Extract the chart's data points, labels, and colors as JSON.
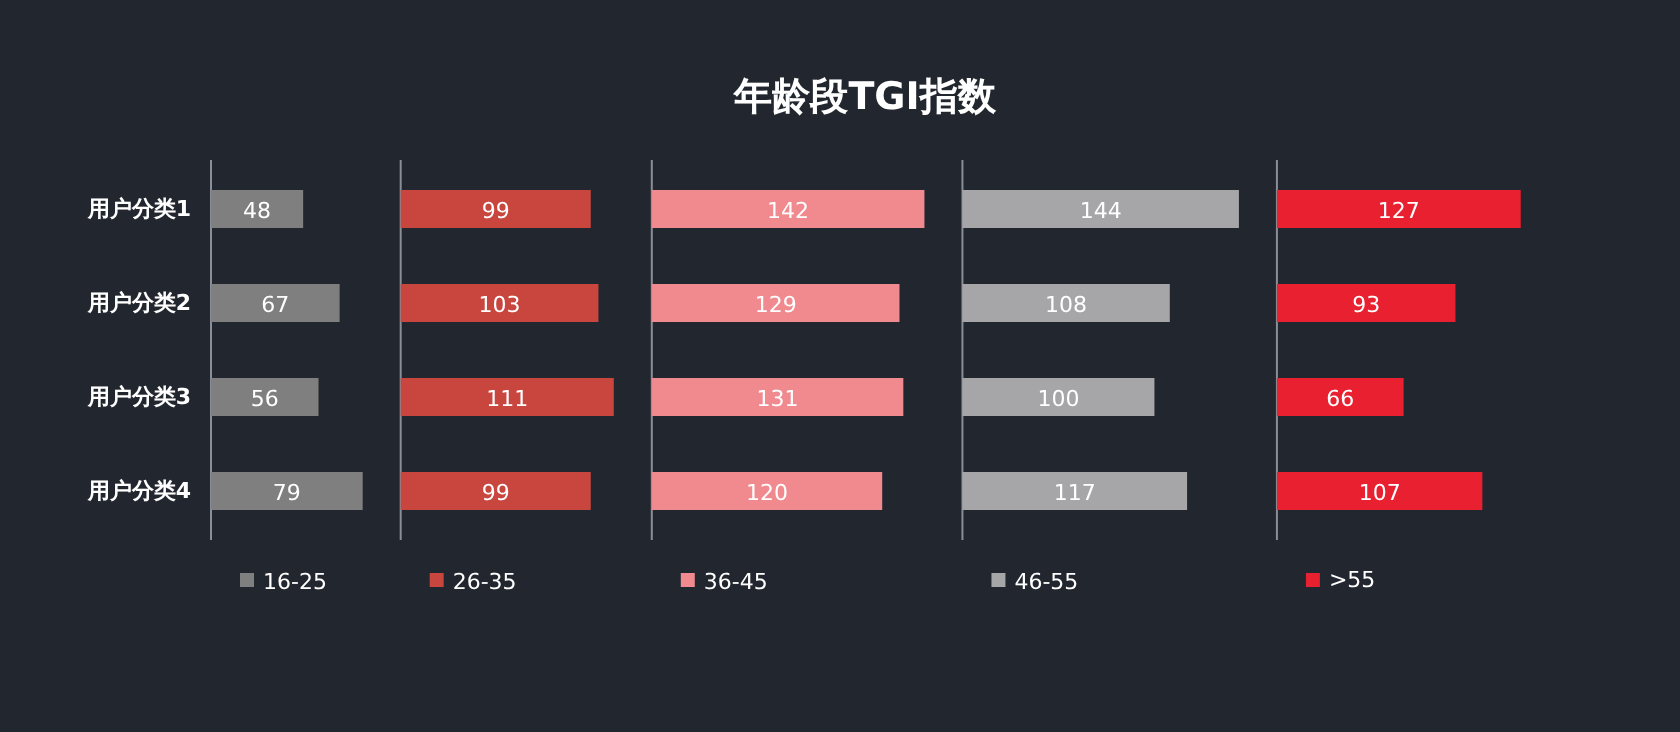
{
  "chart_data": [
    {
      "type": "bar",
      "orientation": "horizontal",
      "categories": [
        "用户分类1",
        "用户分类2",
        "用户分类3",
        "用户分类4"
      ],
      "data_labels": true,
      "tick_labels": "y",
      "legend": "bottom",
      "series": [
        {
          "name": "16-25",
          "color": "#7f7f7f",
          "values": [
            48,
            67,
            56,
            79
          ]
        }
      ]
    },
    {
      "type": "bar",
      "orientation": "horizontal",
      "categories": [
        null,
        null,
        null,
        null
      ],
      "data_labels": true,
      "tick_labels": "y",
      "legend": "bottom",
      "series": [
        {
          "name": "26-35",
          "color": "#c9463f",
          "values": [
            99,
            103,
            111,
            99
          ]
        }
      ]
    },
    {
      "type": "bar",
      "orientation": "horizontal",
      "title": "年龄段TGI指数",
      "categories": [
        null,
        null,
        null,
        null
      ],
      "data_labels": true,
      "tick_labels": "y",
      "legend": "bottom",
      "series": [
        {
          "name": "36-45",
          "color": "#f08a8f",
          "values": [
            142,
            129,
            131,
            120
          ]
        }
      ]
    },
    {
      "type": "bar",
      "orientation": "horizontal",
      "categories": [
        null,
        null,
        null,
        null
      ],
      "data_labels": true,
      "tick_labels": "y",
      "legend": "bottom",
      "series": [
        {
          "name": "46-55",
          "color": "#a6a6a8",
          "values": [
            144,
            108,
            100,
            117
          ]
        }
      ]
    },
    {
      "type": "bar",
      "orientation": "horizontal",
      "categories": [
        null,
        null,
        null,
        null
      ],
      "data_labels": true,
      "tick_labels": "y",
      "legend": "bottom",
      "series": [
        {
          "name": ">55",
          "color": "#e8202f",
          "values": [
            127,
            93,
            66,
            107
          ]
        }
      ]
    }
  ]
}
